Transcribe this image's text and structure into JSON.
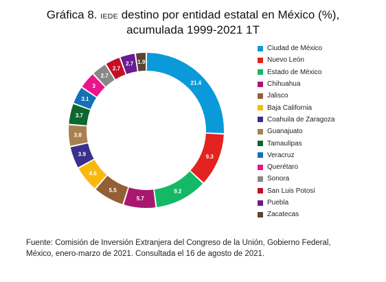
{
  "title": {
    "line1_prefix": "Gráfica 8.",
    "line1_small": "IEDE",
    "line1_rest": "destino por entidad estatal en México (%),",
    "line2": "acumulada 1999-2021 1T"
  },
  "chart_data": {
    "type": "pie",
    "variant": "donut",
    "title": "Gráfica 8. IEDE destino por entidad estatal en México (%), acumulada 1999-2021 1T",
    "legend_position": "right",
    "categories": [
      "Ciudad de México",
      "Nuevo León",
      "Estado de México",
      "Chihuahua",
      "Jalisco",
      "Baja California",
      "Coahuila de Zaragoza",
      "Guanajuato",
      "Tamaulipas",
      "Veracruz",
      "Querétaro",
      "Sonora",
      "San Luis Potosí",
      "Puebla",
      "Zacatecas"
    ],
    "values": [
      21.4,
      9.3,
      9.2,
      5.7,
      5.5,
      4.6,
      3.9,
      3.8,
      3.7,
      3.1,
      3,
      2.7,
      2.7,
      2.7,
      1.9
    ],
    "labels": [
      "21.4",
      "9.3",
      "9.2",
      "5.7",
      "5.5",
      "4.6",
      "3.9",
      "3.8",
      "3.7",
      "3.1",
      "3",
      "2.7",
      "2.7",
      "2.7",
      "1.9"
    ],
    "colors": [
      "#0a9ad9",
      "#e3231f",
      "#14b866",
      "#a8186e",
      "#935f34",
      "#f8b90f",
      "#3a2f8d",
      "#a8804f",
      "#0e6631",
      "#1371b8",
      "#ec148c",
      "#888888",
      "#c50f25",
      "#6c1a96",
      "#5c4335"
    ]
  },
  "source": {
    "line1": "Fuente: Comisión de Inversión Extranjera del Congreso de la Unión, Gobierno Federal,",
    "line2": "México, enero-marzo de 2021. Consultada el 16 de agosto de 2021."
  }
}
